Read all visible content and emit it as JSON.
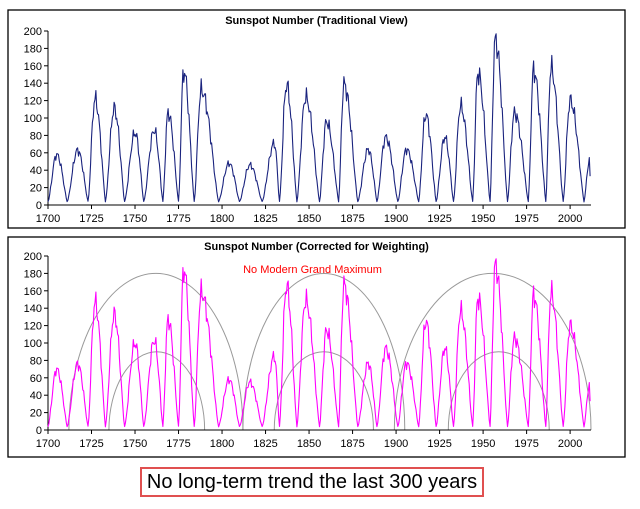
{
  "caption": "No long-term trend the last 300 years",
  "chart_data": [
    {
      "type": "line",
      "title": "Sunspot Number (Traditional View)",
      "xlabel": "",
      "ylabel": "",
      "xlim": [
        1700,
        2012
      ],
      "ylim": [
        0,
        200
      ],
      "x_ticks": [
        "1700",
        "1725",
        "1750",
        "1775",
        "1800",
        "1825",
        "1850",
        "1875",
        "1900",
        "1925",
        "1950",
        "1975",
        "2000"
      ],
      "y_ticks": [
        "0",
        "20",
        "40",
        "60",
        "80",
        "100",
        "120",
        "140",
        "160",
        "180",
        "200"
      ],
      "grid": false,
      "line_color": "#1a237e",
      "series": [
        {
          "minima_years": [
            1700,
            1711,
            1723,
            1733,
            1744,
            1755,
            1766,
            1775,
            1784,
            1798,
            1810,
            1823,
            1833,
            1843,
            1856,
            1867,
            1878,
            1889,
            1901,
            1913,
            1923,
            1933,
            1944,
            1954,
            1964,
            1976,
            1986,
            1996,
            2008
          ],
          "maxima": [
            {
              "year": 1705,
              "value": 58
            },
            {
              "year": 1717,
              "value": 63
            },
            {
              "year": 1727,
              "value": 122
            },
            {
              "year": 1738,
              "value": 111
            },
            {
              "year": 1750,
              "value": 83
            },
            {
              "year": 1761,
              "value": 86
            },
            {
              "year": 1769,
              "value": 106
            },
            {
              "year": 1778,
              "value": 154
            },
            {
              "year": 1788,
              "value": 132
            },
            {
              "year": 1804,
              "value": 48
            },
            {
              "year": 1816,
              "value": 46
            },
            {
              "year": 1830,
              "value": 71
            },
            {
              "year": 1837,
              "value": 138
            },
            {
              "year": 1848,
              "value": 124
            },
            {
              "year": 1860,
              "value": 96
            },
            {
              "year": 1870,
              "value": 139
            },
            {
              "year": 1884,
              "value": 64
            },
            {
              "year": 1894,
              "value": 78
            },
            {
              "year": 1906,
              "value": 64
            },
            {
              "year": 1917,
              "value": 104
            },
            {
              "year": 1928,
              "value": 78
            },
            {
              "year": 1937,
              "value": 114
            },
            {
              "year": 1947,
              "value": 152
            },
            {
              "year": 1957,
              "value": 190
            },
            {
              "year": 1968,
              "value": 106
            },
            {
              "year": 1979,
              "value": 155
            },
            {
              "year": 1989,
              "value": 158
            },
            {
              "year": 2000,
              "value": 120
            },
            {
              "year": 2011,
              "value": 50
            }
          ]
        }
      ]
    },
    {
      "type": "line",
      "title": "Sunspot Number (Corrected for Weighting)",
      "annotation": "No Modern Grand Maximum",
      "annotation_color": "#ff0000",
      "xlabel": "",
      "ylabel": "",
      "xlim": [
        1700,
        2012
      ],
      "ylim": [
        0,
        200
      ],
      "x_ticks": [
        "1700",
        "1725",
        "1750",
        "1775",
        "1800",
        "1825",
        "1850",
        "1875",
        "1900",
        "1925",
        "1950",
        "1975",
        "2000"
      ],
      "y_ticks": [
        "0",
        "20",
        "40",
        "60",
        "80",
        "100",
        "120",
        "140",
        "160",
        "180",
        "200"
      ],
      "grid": false,
      "line_color": "#ff00ff",
      "envelope_color": "#999999",
      "envelopes": [
        {
          "x_start": 1712,
          "x_end": 1812,
          "peak": 180
        },
        {
          "x_start": 1812,
          "x_end": 1905,
          "peak": 180
        },
        {
          "x_start": 1899,
          "x_end": 2012,
          "peak": 180
        },
        {
          "x_start": 1735,
          "x_end": 1790,
          "peak": 90
        },
        {
          "x_start": 1830,
          "x_end": 1887,
          "peak": 90
        },
        {
          "x_start": 1930,
          "x_end": 1988,
          "peak": 90
        }
      ],
      "series": [
        {
          "minima_years": [
            1700,
            1711,
            1723,
            1733,
            1744,
            1755,
            1766,
            1775,
            1784,
            1798,
            1810,
            1823,
            1833,
            1843,
            1856,
            1867,
            1878,
            1889,
            1901,
            1913,
            1923,
            1933,
            1944,
            1954,
            1964,
            1976,
            1986,
            1996,
            2008
          ],
          "maxima": [
            {
              "year": 1705,
              "value": 70
            },
            {
              "year": 1717,
              "value": 76
            },
            {
              "year": 1727,
              "value": 147
            },
            {
              "year": 1738,
              "value": 133
            },
            {
              "year": 1750,
              "value": 100
            },
            {
              "year": 1761,
              "value": 103
            },
            {
              "year": 1769,
              "value": 127
            },
            {
              "year": 1778,
              "value": 185
            },
            {
              "year": 1788,
              "value": 158
            },
            {
              "year": 1804,
              "value": 58
            },
            {
              "year": 1816,
              "value": 55
            },
            {
              "year": 1830,
              "value": 85
            },
            {
              "year": 1837,
              "value": 166
            },
            {
              "year": 1848,
              "value": 149
            },
            {
              "year": 1860,
              "value": 115
            },
            {
              "year": 1870,
              "value": 167
            },
            {
              "year": 1884,
              "value": 77
            },
            {
              "year": 1894,
              "value": 94
            },
            {
              "year": 1906,
              "value": 77
            },
            {
              "year": 1917,
              "value": 125
            },
            {
              "year": 1928,
              "value": 94
            },
            {
              "year": 1937,
              "value": 137
            },
            {
              "year": 1947,
              "value": 152
            },
            {
              "year": 1957,
              "value": 190
            },
            {
              "year": 1968,
              "value": 106
            },
            {
              "year": 1979,
              "value": 155
            },
            {
              "year": 1989,
              "value": 158
            },
            {
              "year": 2000,
              "value": 120
            },
            {
              "year": 2011,
              "value": 50
            }
          ]
        }
      ]
    }
  ]
}
